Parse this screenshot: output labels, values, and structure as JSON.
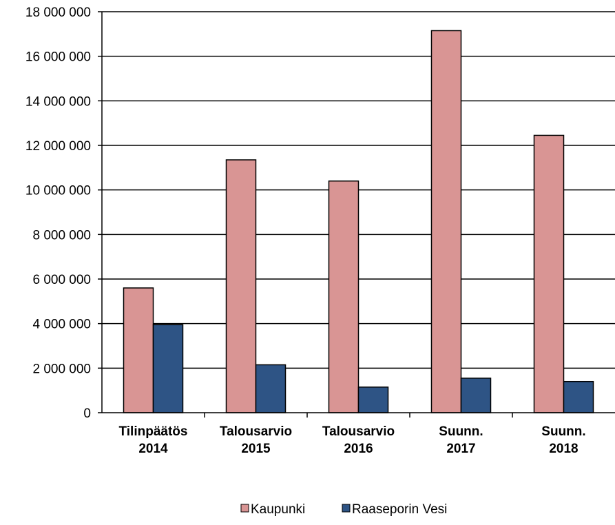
{
  "chart_data": {
    "type": "bar",
    "categories": [
      [
        "Tilinpäätös",
        "2014"
      ],
      [
        "Talousarvio",
        "2015"
      ],
      [
        "Talousarvio",
        "2016"
      ],
      [
        "Suunn.",
        "2017"
      ],
      [
        "Suunn.",
        "2018"
      ]
    ],
    "series": [
      {
        "name": "Kaupunki",
        "color": "#d99594",
        "values": [
          5600000,
          11350000,
          10400000,
          17150000,
          12450000
        ]
      },
      {
        "name": "Raaseporin Vesi",
        "color": "#2e5485",
        "values": [
          3950000,
          2150000,
          1150000,
          1550000,
          1400000
        ]
      }
    ],
    "ylim": [
      0,
      18000000
    ],
    "yticks": [
      0,
      2000000,
      4000000,
      6000000,
      8000000,
      10000000,
      12000000,
      14000000,
      16000000,
      18000000
    ],
    "ytick_labels": [
      "0",
      "2 000 000",
      "4 000 000",
      "6 000 000",
      "8 000 000",
      "10 000 000",
      "12 000 000",
      "14 000 000",
      "16 000 000",
      "18 000 000"
    ],
    "grid": true,
    "legend_position": "bottom"
  }
}
